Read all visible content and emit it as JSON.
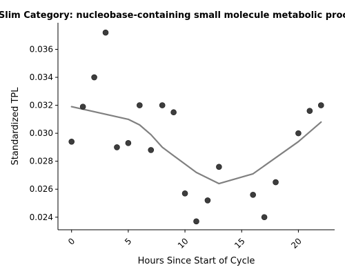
{
  "chart_data": {
    "type": "scatter",
    "title": "GO Slim Category: nucleobase-containing small molecule metabolic process",
    "xlabel": "Hours Since Start of Cycle",
    "ylabel": "Standardized TPL",
    "xlim": [
      -1.2,
      23.2
    ],
    "ylim": [
      0.0231,
      0.0379
    ],
    "xticks": [
      0,
      5,
      10,
      15,
      20
    ],
    "xtick_labels": [
      "0",
      "5",
      "10",
      "15",
      "20"
    ],
    "yticks": [
      0.024,
      0.026,
      0.028,
      0.03,
      0.032,
      0.034,
      0.036
    ],
    "ytick_labels": [
      "0.024",
      "0.026",
      "0.028",
      "0.030",
      "0.032",
      "0.034",
      "0.036"
    ],
    "grid": false,
    "points": {
      "x": [
        0,
        1,
        2,
        3,
        4,
        5,
        6,
        7,
        8,
        9,
        10,
        11,
        12,
        13,
        16,
        17,
        18,
        20,
        21,
        22
      ],
      "y": [
        0.0294,
        0.0319,
        0.034,
        0.0372,
        0.029,
        0.0293,
        0.032,
        0.0288,
        0.032,
        0.0315,
        0.0257,
        0.0237,
        0.0252,
        0.0276,
        0.0256,
        0.024,
        0.0265,
        0.03,
        0.0316,
        0.032
      ],
      "color": "#333333"
    },
    "trend_line": {
      "x": [
        0,
        5,
        6,
        7,
        8,
        9,
        10,
        11,
        12,
        13,
        16,
        20,
        22
      ],
      "y": [
        0.0319,
        0.031,
        0.0306,
        0.0299,
        0.029,
        0.0284,
        0.0278,
        0.0272,
        0.0268,
        0.0264,
        0.0271,
        0.0294,
        0.0308
      ],
      "color": "#808080"
    }
  }
}
